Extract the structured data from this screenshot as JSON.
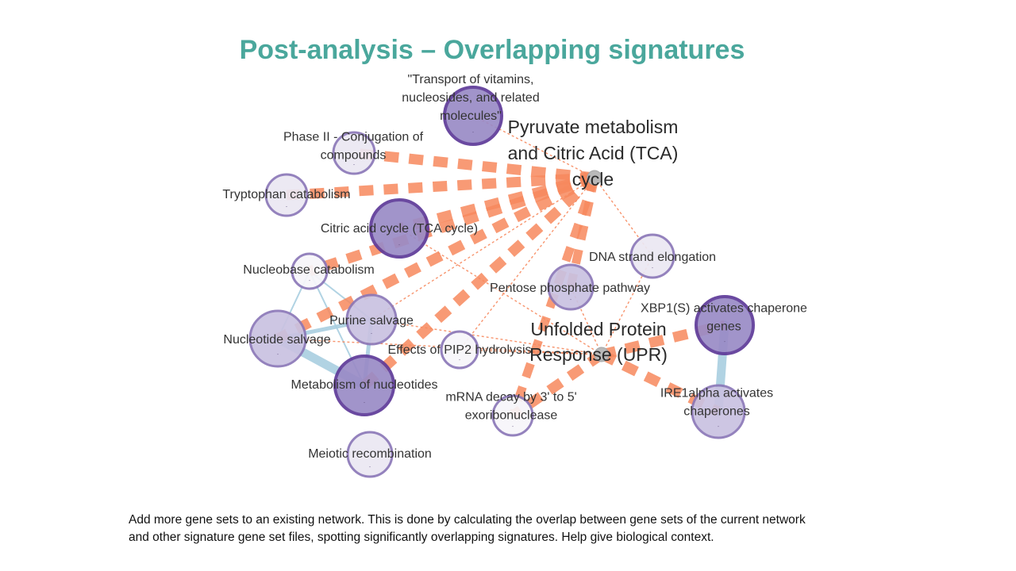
{
  "slide": {
    "title": "Post-analysis – Overlapping signatures",
    "caption_line1": "Add more gene sets to an existing network. This is done by calculating the overlap between gene sets of the current network",
    "caption_line2": "and other signature gene set files, spotting significantly overlapping signatures. Help give biological context."
  },
  "colors": {
    "title": "#4aa79c",
    "signature_edge": "#f7895e",
    "overlap_edge": "#a9cfe0",
    "node_dark_fill": "#9a8bc6",
    "node_mid_fill": "#c9c2e1",
    "node_light_fill": "#ebe8f3",
    "node_border": "#6a4aa0",
    "hub_fill": "#b9b9b9"
  },
  "network": {
    "nodes": [
      {
        "id": "transport",
        "lines": [
          "\"Transport of vitamins,",
          "nucleosides, and related",
          "molecules\""
        ],
        "shade": "dark"
      },
      {
        "id": "phase2",
        "lines": [
          "Phase II - Conjugation of",
          "compounds"
        ],
        "shade": "light"
      },
      {
        "id": "trp",
        "lines": [
          "Tryptophan catabolism"
        ],
        "shade": "light"
      },
      {
        "id": "tca",
        "lines": [
          "Citric acid cycle (TCA cycle)"
        ],
        "shade": "dark"
      },
      {
        "id": "nbcat",
        "lines": [
          "Nucleobase catabolism"
        ],
        "shade": "white"
      },
      {
        "id": "purine",
        "lines": [
          "Purine salvage"
        ],
        "shade": "mid"
      },
      {
        "id": "nucsalv",
        "lines": [
          "Nucleotide salvage"
        ],
        "shade": "mid"
      },
      {
        "id": "metnuc",
        "lines": [
          "Metabolism of nucleotides"
        ],
        "shade": "dark"
      },
      {
        "id": "pip2",
        "lines": [
          "Effects of PIP2 hydrolysis"
        ],
        "shade": "white"
      },
      {
        "id": "meiotic",
        "lines": [
          "Meiotic recombination"
        ],
        "shade": "light"
      },
      {
        "id": "mrna",
        "lines": [
          "mRNA decay by 3' to 5'",
          "exoribonuclease"
        ],
        "shade": "white"
      },
      {
        "id": "pentose",
        "lines": [
          "Pentose phosphate pathway"
        ],
        "shade": "mid"
      },
      {
        "id": "dna",
        "lines": [
          "DNA strand elongation"
        ],
        "shade": "light"
      },
      {
        "id": "xbp1",
        "lines": [
          "XBP1(S) activates chaperone",
          "genes"
        ],
        "shade": "dark"
      },
      {
        "id": "ire1",
        "lines": [
          "IRE1alpha activates",
          "chaperones"
        ],
        "shade": "mid"
      }
    ],
    "hubs": [
      {
        "id": "pyruvate",
        "lines": [
          "Pyruvate metabolism",
          "and Citric Acid (TCA)",
          "cycle"
        ]
      },
      {
        "id": "upr",
        "lines": [
          "Unfolded Protein",
          "Response (UPR)"
        ]
      }
    ],
    "overlap_edges": [
      {
        "from": "nbcat",
        "to": "nucsalv",
        "weight": 1
      },
      {
        "from": "nbcat",
        "to": "metnuc",
        "weight": 1
      },
      {
        "from": "nbcat",
        "to": "purine",
        "weight": 1
      },
      {
        "from": "purine",
        "to": "nucsalv",
        "weight": 2
      },
      {
        "from": "purine",
        "to": "metnuc",
        "weight": 2
      },
      {
        "from": "nucsalv",
        "to": "metnuc",
        "weight": 5
      },
      {
        "from": "xbp1",
        "to": "ire1",
        "weight": 5
      }
    ],
    "signature_edges": [
      {
        "from": "pyruvate",
        "to": "phase2",
        "weight": 5
      },
      {
        "from": "pyruvate",
        "to": "trp",
        "weight": 5
      },
      {
        "from": "pyruvate",
        "to": "tca",
        "weight": 5
      },
      {
        "from": "pyruvate",
        "to": "nbcat",
        "weight": 5
      },
      {
        "from": "pyruvate",
        "to": "nucsalv",
        "weight": 5
      },
      {
        "from": "pyruvate",
        "to": "metnuc",
        "weight": 5
      },
      {
        "from": "pyruvate",
        "to": "pentose",
        "weight": 4
      },
      {
        "from": "pyruvate",
        "to": "mrna",
        "weight": 4
      },
      {
        "from": "pyruvate",
        "to": "transport",
        "weight": 1
      },
      {
        "from": "pyruvate",
        "to": "dna",
        "weight": 1
      },
      {
        "from": "pyruvate",
        "to": "purine",
        "weight": 1
      },
      {
        "from": "pyruvate",
        "to": "pip2",
        "weight": 1
      },
      {
        "from": "upr",
        "to": "xbp1",
        "weight": 5
      },
      {
        "from": "upr",
        "to": "ire1",
        "weight": 5
      },
      {
        "from": "upr",
        "to": "mrna",
        "weight": 5
      },
      {
        "from": "upr",
        "to": "pip2",
        "weight": 1
      },
      {
        "from": "upr",
        "to": "purine",
        "weight": 1
      },
      {
        "from": "upr",
        "to": "nucsalv",
        "weight": 1
      },
      {
        "from": "upr",
        "to": "tca",
        "weight": 1
      },
      {
        "from": "upr",
        "to": "pentose",
        "weight": 1
      },
      {
        "from": "upr",
        "to": "dna",
        "weight": 1
      }
    ]
  }
}
